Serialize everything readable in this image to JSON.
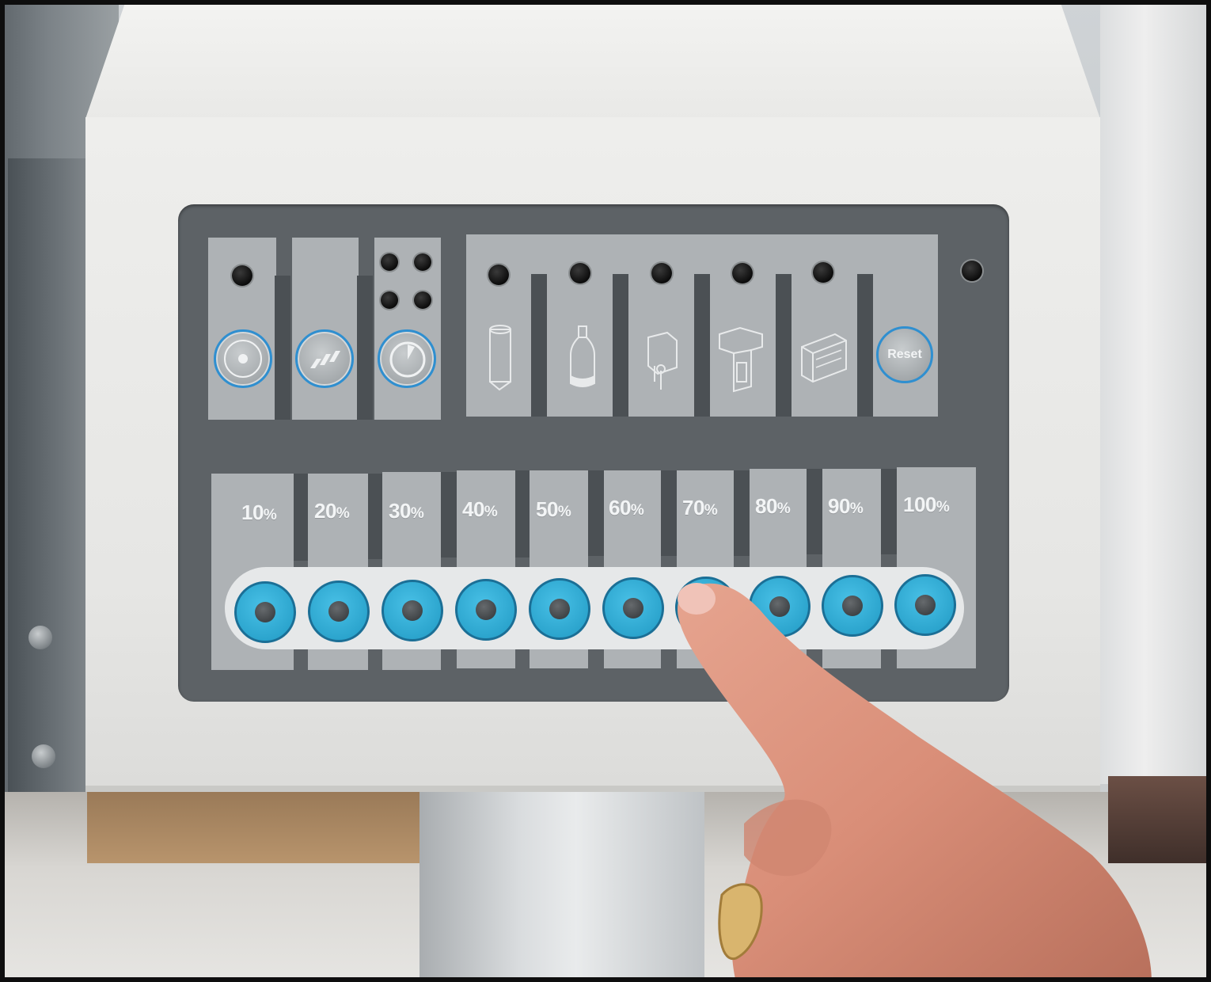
{
  "panel": {
    "top_buttons": [
      {
        "name": "disc-button",
        "icon": "disc-icon"
      },
      {
        "name": "blocks-button",
        "icon": "blocks-icon"
      },
      {
        "name": "timer-button",
        "icon": "timer-icon"
      }
    ],
    "product_slots": [
      {
        "name": "paper-roll",
        "icon": "paper-roll-icon"
      },
      {
        "name": "bottle",
        "icon": "bottle-icon"
      },
      {
        "name": "bag",
        "icon": "bag-icon"
      },
      {
        "name": "dispenser",
        "icon": "dispenser-icon"
      },
      {
        "name": "box",
        "icon": "box-icon"
      }
    ],
    "reset_label": "Reset",
    "percent_options": [
      {
        "num": "10",
        "suffix": "%"
      },
      {
        "num": "20",
        "suffix": "%"
      },
      {
        "num": "30",
        "suffix": "%"
      },
      {
        "num": "40",
        "suffix": "%"
      },
      {
        "num": "50",
        "suffix": "%"
      },
      {
        "num": "60",
        "suffix": "%"
      },
      {
        "num": "70",
        "suffix": "%"
      },
      {
        "num": "80",
        "suffix": "%"
      },
      {
        "num": "90",
        "suffix": "%"
      },
      {
        "num": "100",
        "suffix": "%"
      }
    ],
    "pressed_option": "70%"
  },
  "colors": {
    "button_blue": "#2aa3cc",
    "panel_dark": "#5d6266",
    "tile_gray": "#aeb2b5",
    "ring_blue": "#2f8fd0"
  }
}
